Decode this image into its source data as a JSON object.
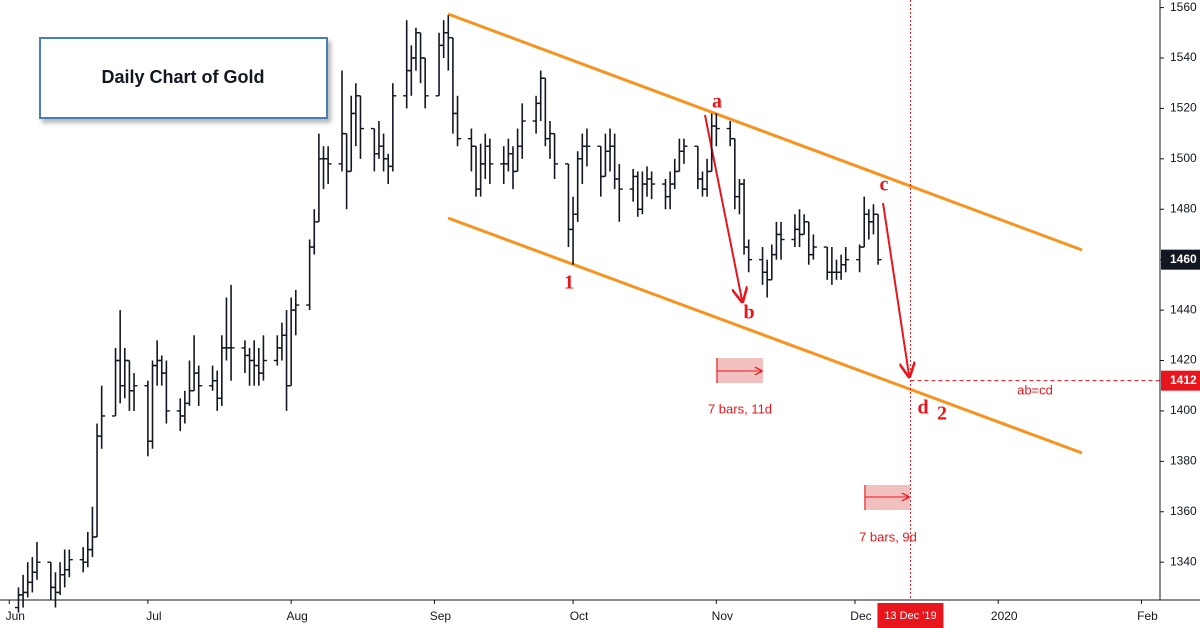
{
  "chart_data": {
    "type": "ohlc",
    "title": "Daily Chart of Gold",
    "color": "#131722",
    "x": [
      2,
      3,
      4,
      5,
      6,
      9,
      10,
      11,
      12,
      13,
      16,
      17,
      18,
      19,
      20,
      23,
      24,
      25,
      26,
      27,
      30,
      31,
      32,
      33,
      34,
      37,
      38,
      39,
      40,
      41,
      44,
      45,
      46,
      47,
      48,
      51,
      52,
      53,
      54,
      55,
      58,
      59,
      60,
      61,
      62,
      65,
      66,
      67,
      68,
      69,
      72,
      73,
      74,
      75,
      76,
      79,
      80,
      81,
      82,
      83,
      86,
      87,
      88,
      89,
      90,
      93,
      94,
      95,
      96,
      97,
      100,
      101,
      102,
      103,
      104,
      107,
      108,
      109,
      110,
      111,
      114,
      115,
      116,
      117,
      118,
      121,
      122,
      123,
      124,
      125,
      128,
      129,
      130,
      131,
      132,
      135,
      136,
      137,
      138,
      139,
      142,
      143,
      144,
      145,
      146,
      149,
      150,
      151,
      152,
      153,
      156,
      157,
      158,
      159,
      160,
      163,
      164,
      165,
      166,
      167,
      170,
      171,
      172,
      173,
      174,
      177,
      178,
      179,
      180,
      181,
      184,
      185,
      186,
      187,
      188
    ],
    "open": [
      1322,
      1327,
      1328,
      1332,
      1336,
      1340,
      1330,
      1328,
      1335,
      1337,
      1341,
      1340,
      1345,
      1350,
      1390,
      1398,
      1420,
      1410,
      1420,
      1408,
      1410,
      1388,
      1418,
      1420,
      1415,
      1400,
      1398,
      1403,
      1408,
      1415,
      1410,
      1412,
      1405,
      1425,
      1425,
      1425,
      1422,
      1420,
      1418,
      1415,
      1420,
      1425,
      1430,
      1410,
      1440,
      1442,
      1465,
      1475,
      1500,
      1500,
      1498,
      1510,
      1495,
      1518,
      1525,
      1512,
      1502,
      1505,
      1500,
      1497,
      1525,
      1535,
      1540,
      1550,
      1540,
      1525,
      1545,
      1550,
      1548,
      1518,
      1508,
      1505,
      1488,
      1498,
      1505,
      1498,
      1498,
      1502,
      1495,
      1505,
      1515,
      1522,
      1532,
      1508,
      1510,
      1498,
      1472,
      1478,
      1500,
      1505,
      1505,
      1493,
      1503,
      1505,
      1492,
      1488,
      1493,
      1480,
      1490,
      1492,
      1490,
      1485,
      1490,
      1495,
      1503,
      1505,
      1492,
      1488,
      1495,
      1513,
      1512,
      1508,
      1485,
      1490,
      1465,
      1460,
      1455,
      1452,
      1462,
      1470,
      1468,
      1472,
      1470,
      1475,
      1462,
      1465,
      1455,
      1455,
      1455,
      1458,
      1460,
      1465,
      1478,
      1475,
      1478
    ],
    "high": [
      1330,
      1335,
      1340,
      1342,
      1348,
      1340,
      1336,
      1340,
      1345,
      1345,
      1346,
      1352,
      1362,
      1395,
      1410,
      1425,
      1440,
      1425,
      1420,
      1415,
      1412,
      1420,
      1428,
      1422,
      1420,
      1405,
      1408,
      1420,
      1430,
      1418,
      1418,
      1416,
      1430,
      1445,
      1450,
      1428,
      1425,
      1428,
      1425,
      1430,
      1430,
      1435,
      1440,
      1445,
      1448,
      1468,
      1480,
      1510,
      1505,
      1505,
      1535,
      1510,
      1525,
      1530,
      1525,
      1512,
      1515,
      1510,
      1502,
      1530,
      1555,
      1545,
      1552,
      1550,
      1540,
      1550,
      1555,
      1557,
      1548,
      1525,
      1512,
      1505,
      1506,
      1510,
      1508,
      1505,
      1508,
      1505,
      1512,
      1522,
      1525,
      1535,
      1532,
      1515,
      1510,
      1498,
      1485,
      1503,
      1510,
      1512,
      1505,
      1510,
      1512,
      1510,
      1498,
      1496,
      1495,
      1495,
      1497,
      1495,
      1492,
      1495,
      1500,
      1508,
      1508,
      1505,
      1495,
      1500,
      1518,
      1518,
      1515,
      1508,
      1492,
      1492,
      1468,
      1465,
      1460,
      1466,
      1475,
      1475,
      1478,
      1480,
      1478,
      1475,
      1470,
      1465,
      1465,
      1460,
      1462,
      1465,
      1466,
      1485,
      1480,
      1482,
      1478
    ],
    "low": [
      1320,
      1322,
      1326,
      1328,
      1333,
      1325,
      1322,
      1327,
      1330,
      1334,
      1336,
      1338,
      1342,
      1350,
      1385,
      1398,
      1403,
      1405,
      1400,
      1400,
      1382,
      1385,
      1410,
      1410,
      1395,
      1392,
      1395,
      1402,
      1408,
      1402,
      1408,
      1400,
      1402,
      1420,
      1412,
      1415,
      1410,
      1410,
      1410,
      1412,
      1418,
      1420,
      1400,
      1410,
      1430,
      1440,
      1462,
      1475,
      1488,
      1490,
      1495,
      1480,
      1495,
      1505,
      1500,
      1495,
      1500,
      1495,
      1490,
      1495,
      1520,
      1525,
      1535,
      1530,
      1520,
      1525,
      1540,
      1535,
      1510,
      1505,
      1495,
      1485,
      1485,
      1492,
      1490,
      1490,
      1495,
      1488,
      1495,
      1500,
      1510,
      1515,
      1505,
      1500,
      1492,
      1465,
      1458,
      1475,
      1490,
      1497,
      1485,
      1493,
      1495,
      1488,
      1475,
      1483,
      1477,
      1478,
      1485,
      1484,
      1480,
      1480,
      1488,
      1495,
      1498,
      1488,
      1485,
      1485,
      1495,
      1505,
      1505,
      1480,
      1478,
      1462,
      1455,
      1450,
      1445,
      1452,
      1460,
      1460,
      1465,
      1465,
      1470,
      1458,
      1460,
      1452,
      1450,
      1452,
      1452,
      1455,
      1455,
      1465,
      1468,
      1470,
      1458
    ],
    "close": [
      1327,
      1328,
      1332,
      1336,
      1340,
      1330,
      1328,
      1335,
      1337,
      1341,
      1340,
      1345,
      1350,
      1390,
      1398,
      1420,
      1410,
      1420,
      1408,
      1410,
      1388,
      1418,
      1420,
      1415,
      1400,
      1398,
      1403,
      1408,
      1415,
      1410,
      1412,
      1405,
      1425,
      1425,
      1425,
      1422,
      1420,
      1418,
      1415,
      1420,
      1425,
      1430,
      1410,
      1440,
      1442,
      1465,
      1475,
      1500,
      1500,
      1498,
      1510,
      1495,
      1518,
      1525,
      1512,
      1502,
      1505,
      1500,
      1497,
      1525,
      1535,
      1540,
      1550,
      1540,
      1525,
      1545,
      1550,
      1548,
      1518,
      1508,
      1505,
      1488,
      1498,
      1505,
      1498,
      1498,
      1502,
      1495,
      1505,
      1515,
      1522,
      1532,
      1508,
      1510,
      1498,
      1472,
      1478,
      1500,
      1505,
      1505,
      1493,
      1503,
      1505,
      1492,
      1488,
      1493,
      1480,
      1490,
      1492,
      1490,
      1485,
      1490,
      1495,
      1503,
      1505,
      1492,
      1488,
      1495,
      1513,
      1512,
      1508,
      1485,
      1490,
      1465,
      1460,
      1455,
      1452,
      1462,
      1470,
      1468,
      1472,
      1470,
      1475,
      1462,
      1465,
      1455,
      1455,
      1455,
      1458,
      1460,
      1465,
      1478,
      1475,
      1478,
      1460
    ],
    "xlim": [
      -2,
      249
    ],
    "ylim": [
      1325,
      1563
    ],
    "yticks": [
      1340,
      1360,
      1380,
      1400,
      1420,
      1440,
      1460,
      1480,
      1500,
      1520,
      1540,
      1560
    ],
    "xticks": [
      {
        "value": 0,
        "label": "Jun"
      },
      {
        "value": 30,
        "label": "Jul"
      },
      {
        "value": 61,
        "label": "Aug"
      },
      {
        "value": 92,
        "label": "Sep"
      },
      {
        "value": 122,
        "label": "Oct"
      },
      {
        "value": 153,
        "label": "Nov"
      },
      {
        "value": 183,
        "label": "Dec"
      },
      {
        "value": 214,
        "label": "2020"
      },
      {
        "value": 245,
        "label": "Feb"
      }
    ],
    "marker_date": {
      "value": 195,
      "label": "13 Dec '19"
    },
    "target_level": 1412,
    "annotations": [
      "a",
      "b",
      "c",
      "d",
      "1",
      "2",
      "ab=cd",
      "7 bars, 11d",
      "7 bars, 9d"
    ]
  }
}
